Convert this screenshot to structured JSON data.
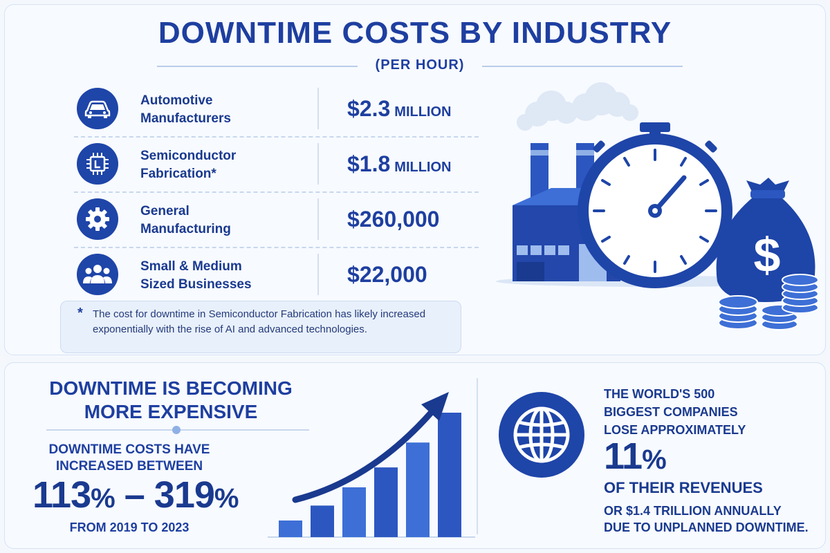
{
  "header": {
    "title": "DOWNTIME COSTS BY INDUSTRY",
    "subtitle": "(PER HOUR)"
  },
  "industries": [
    {
      "line1": "Automotive",
      "line2": "Manufacturers",
      "value": "$2.3",
      "unit": "MILLION",
      "icon": "car-icon"
    },
    {
      "line1": "Semiconductor",
      "line2": "Fabrication*",
      "value": "$1.8",
      "unit": "MILLION",
      "icon": "chip-icon"
    },
    {
      "line1": "General",
      "line2": "Manufacturing",
      "value": "$260,000",
      "unit": "",
      "icon": "gear-icon"
    },
    {
      "line1": "Small & Medium",
      "line2": "Sized Businesses",
      "value": "$22,000",
      "unit": "",
      "icon": "people-icon"
    }
  ],
  "note": {
    "marker": "*",
    "text": "The cost for downtime in Semiconductor Fabrication has likely increased exponentially with the rise of AI and advanced technologies."
  },
  "trend": {
    "headline_line1": "DOWNTIME IS BECOMING",
    "headline_line2": "MORE EXPENSIVE",
    "sub_line1": "DOWNTIME COSTS HAVE",
    "sub_line2": "INCREASED BETWEEN",
    "low": "113",
    "high": "319",
    "percent": "%",
    "dash": "–",
    "years": "FROM 2019 TO 2023",
    "bar_levels": [
      0.1,
      0.19,
      0.3,
      0.42,
      0.57,
      0.75
    ]
  },
  "global": {
    "line1": "THE WORLD'S 500",
    "line2": "BIGGEST COMPANIES",
    "line3": "LOSE APPROXIMATELY",
    "big": "11",
    "percent": "%",
    "line4": "OF THEIR REVENUES",
    "line5": "OR $1.4 TRILLION ANNUALLY",
    "line6": "DUE TO UNPLANNED DOWNTIME."
  },
  "colors": {
    "primary": "#1e45a8",
    "text": "#1a3a8f",
    "light": "#e8f0fb",
    "accent": "#3d6fd6"
  }
}
